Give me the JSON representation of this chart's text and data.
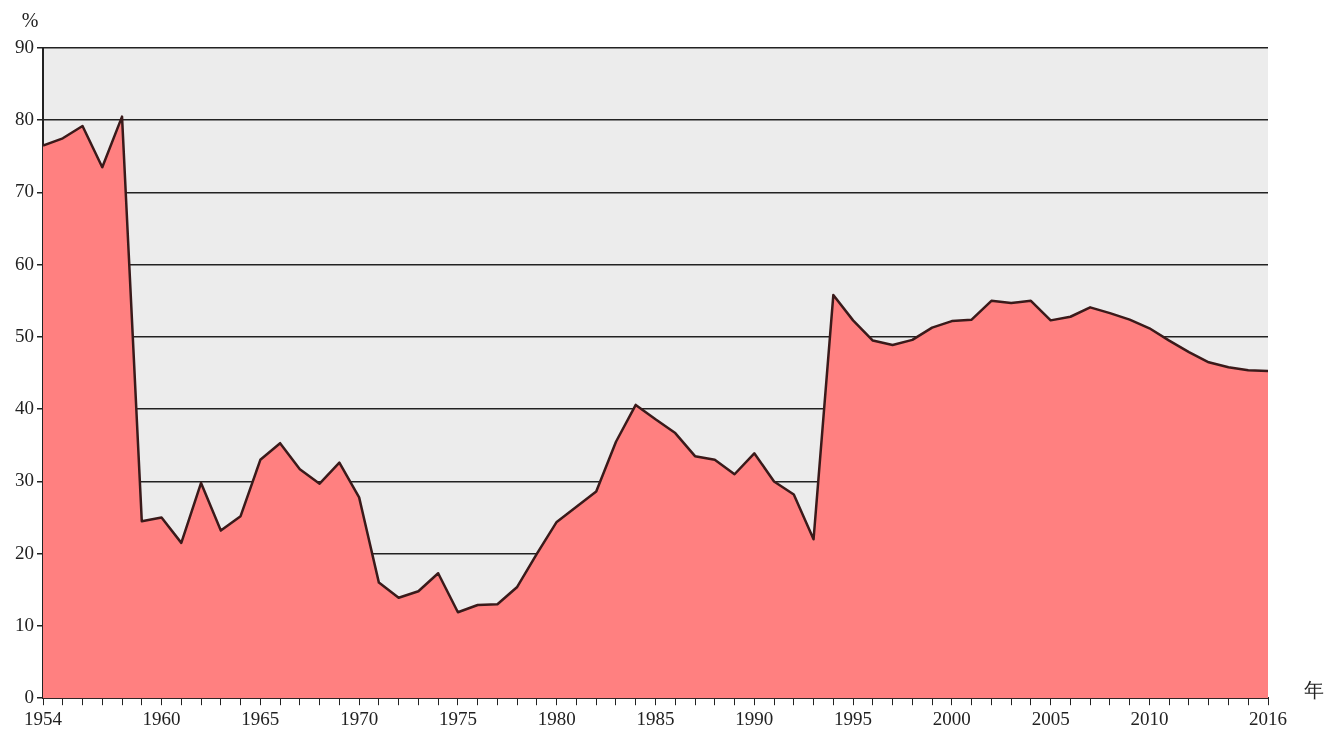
{
  "chart_data": {
    "type": "area",
    "xlabel": "年",
    "ylabel": "%",
    "x": [
      1954,
      1955,
      1956,
      1957,
      1958,
      1959,
      1960,
      1961,
      1962,
      1963,
      1964,
      1965,
      1966,
      1967,
      1968,
      1969,
      1970,
      1971,
      1972,
      1973,
      1974,
      1975,
      1976,
      1977,
      1978,
      1979,
      1980,
      1981,
      1982,
      1983,
      1984,
      1985,
      1986,
      1987,
      1988,
      1989,
      1990,
      1991,
      1992,
      1993,
      1994,
      1995,
      1996,
      1997,
      1998,
      1999,
      2000,
      2001,
      2002,
      2003,
      2004,
      2005,
      2006,
      2007,
      2008,
      2009,
      2010,
      2011,
      2012,
      2013,
      2014,
      2015,
      2016
    ],
    "series": [
      {
        "color": "#ff8080",
        "values": [
          76.5,
          77.5,
          79.2,
          73.5,
          80.5,
          24.5,
          25.0,
          21.5,
          29.8,
          23.2,
          25.2,
          33.0,
          35.3,
          31.7,
          29.7,
          32.6,
          27.8,
          16.0,
          13.9,
          14.8,
          17.3,
          11.9,
          12.9,
          13.0,
          15.4,
          20.0,
          24.4,
          26.5,
          28.6,
          35.5,
          40.6,
          38.6,
          36.7,
          33.5,
          33.0,
          31.0,
          33.9,
          30.0,
          28.2,
          22.0,
          55.8,
          52.3,
          49.5,
          48.9,
          49.6,
          51.3,
          52.2,
          52.4,
          55.0,
          54.7,
          55.0,
          52.3,
          52.8,
          54.1,
          53.3,
          52.4,
          51.2,
          49.5,
          47.9,
          46.5,
          45.8,
          45.4,
          45.3
        ]
      }
    ],
    "xlim": [
      1954,
      2016
    ],
    "xticks": [
      1954,
      {
        "value": 1955,
        "label": null
      },
      {
        "value": 1956,
        "label": null
      },
      {
        "value": 1957,
        "label": null
      },
      {
        "value": 1958,
        "label": null
      },
      {
        "value": 1959,
        "label": null
      },
      1960,
      {
        "value": 1961,
        "label": null
      },
      {
        "value": 1962,
        "label": null
      },
      {
        "value": 1963,
        "label": null
      },
      {
        "value": 1964,
        "label": null
      },
      1965,
      {
        "value": 1966,
        "label": null
      },
      {
        "value": 1967,
        "label": null
      },
      {
        "value": 1968,
        "label": null
      },
      {
        "value": 1969,
        "label": null
      },
      1970,
      {
        "value": 1971,
        "label": null
      },
      {
        "value": 1972,
        "label": null
      },
      {
        "value": 1973,
        "label": null
      },
      {
        "value": 1974,
        "label": null
      },
      1975,
      {
        "value": 1976,
        "label": null
      },
      {
        "value": 1977,
        "label": null
      },
      {
        "value": 1978,
        "label": null
      },
      {
        "value": 1979,
        "label": null
      },
      1980,
      {
        "value": 1981,
        "label": null
      },
      {
        "value": 1982,
        "label": null
      },
      {
        "value": 1983,
        "label": null
      },
      {
        "value": 1984,
        "label": null
      },
      1985,
      {
        "value": 1986,
        "label": null
      },
      {
        "value": 1987,
        "label": null
      },
      {
        "value": 1988,
        "label": null
      },
      {
        "value": 1989,
        "label": null
      },
      1990,
      {
        "value": 1991,
        "label": null
      },
      {
        "value": 1992,
        "label": null
      },
      {
        "value": 1993,
        "label": null
      },
      {
        "value": 1994,
        "label": null
      },
      1995,
      {
        "value": 1996,
        "label": null
      },
      {
        "value": 1997,
        "label": null
      },
      {
        "value": 1998,
        "label": null
      },
      {
        "value": 1999,
        "label": null
      },
      2000,
      {
        "value": 2001,
        "label": null
      },
      {
        "value": 2002,
        "label": null
      },
      {
        "value": 2003,
        "label": null
      },
      {
        "value": 2004,
        "label": null
      },
      2005,
      {
        "value": 2006,
        "label": null
      },
      {
        "value": 2007,
        "label": null
      },
      {
        "value": 2008,
        "label": null
      },
      {
        "value": 2009,
        "label": null
      },
      2010,
      {
        "value": 2011,
        "label": null
      },
      {
        "value": 2012,
        "label": null
      },
      {
        "value": 2013,
        "label": null
      },
      {
        "value": 2014,
        "label": null
      },
      {
        "value": 2015,
        "label": null
      },
      2016
    ],
    "ylim": [
      0,
      90
    ],
    "yticks": [
      0,
      10,
      20,
      30,
      40,
      50,
      60,
      70,
      80,
      90
    ],
    "grid": "y",
    "legend": false
  }
}
